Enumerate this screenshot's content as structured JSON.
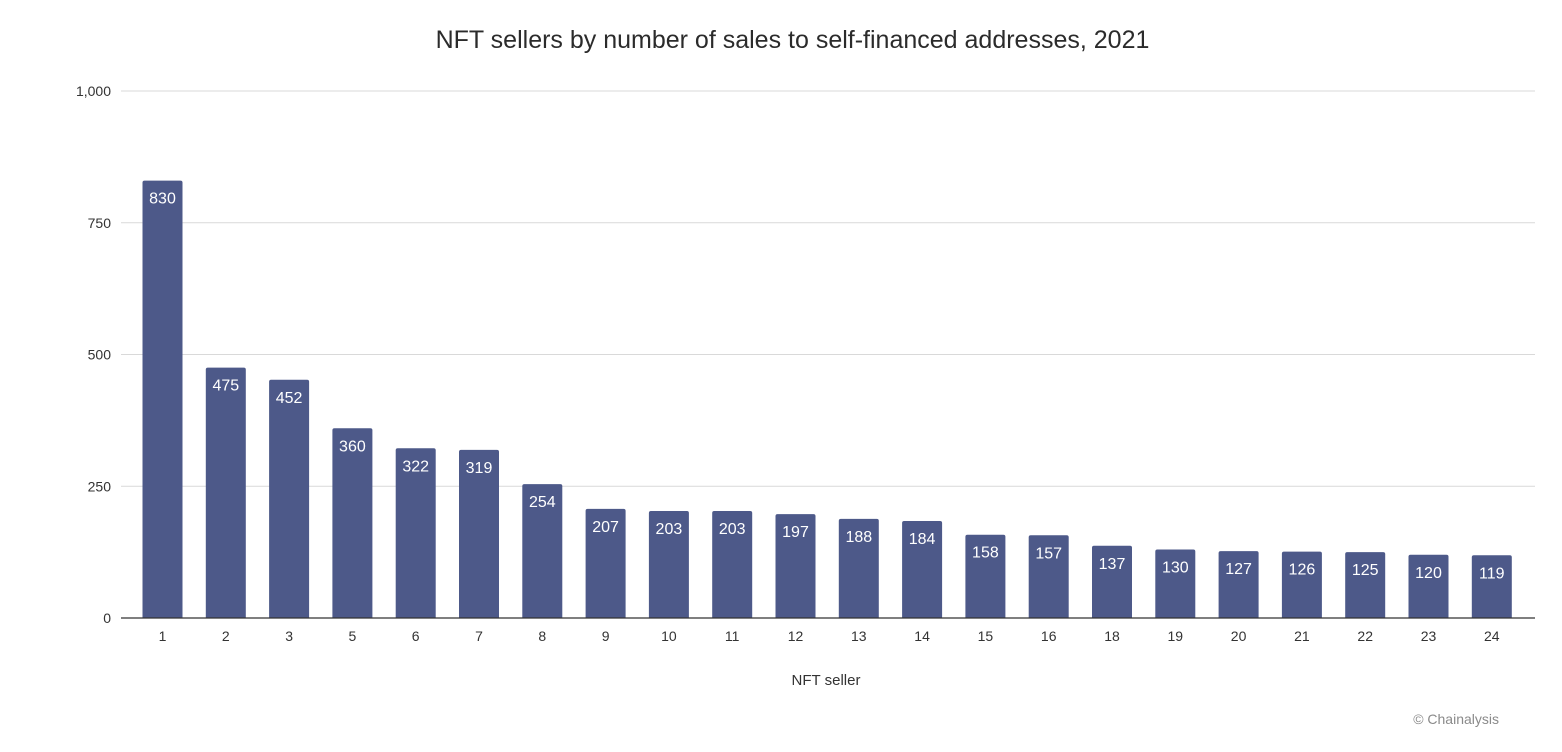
{
  "chart_data": {
    "type": "bar",
    "title": "NFT sellers by number of sales to self-financed addresses, 2021",
    "xlabel": "NFT seller",
    "ylabel": "",
    "ylim": [
      0,
      1000
    ],
    "yticks": [
      0,
      250,
      500,
      750,
      1000
    ],
    "ytick_labels": [
      "0",
      "250",
      "500",
      "750",
      "1,000"
    ],
    "grid": true,
    "categories": [
      "1",
      "2",
      "3",
      "5",
      "6",
      "7",
      "8",
      "9",
      "10",
      "11",
      "12",
      "13",
      "14",
      "15",
      "16",
      "18",
      "19",
      "20",
      "21",
      "22",
      "23",
      "24"
    ],
    "values": [
      830,
      475,
      452,
      360,
      322,
      319,
      254,
      207,
      203,
      203,
      197,
      188,
      184,
      158,
      157,
      137,
      130,
      127,
      126,
      125,
      120,
      119
    ],
    "data_labels": true,
    "colors": {
      "bar": "#4d5989",
      "label": "#ffffff",
      "grid": "#d9d9d9",
      "axis": "#333333",
      "text": "#333333"
    }
  },
  "footer": {
    "credit": "© Chainalysis"
  }
}
